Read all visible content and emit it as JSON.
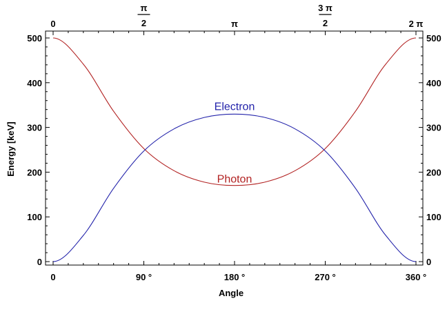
{
  "chart_data": {
    "type": "line",
    "xlabel": "Angle",
    "ylabel": "Energy [keV]",
    "xlim": [
      0,
      360
    ],
    "ylim": [
      0,
      500
    ],
    "grid": false,
    "legend": "none",
    "x_ticks": [
      {
        "value": 0,
        "label": "0"
      },
      {
        "value": 90,
        "label": "90 °"
      },
      {
        "value": 180,
        "label": "180 °"
      },
      {
        "value": 270,
        "label": "270 °"
      },
      {
        "value": 360,
        "label": "360 °"
      }
    ],
    "x_ticks_top": [
      {
        "value": 0,
        "label": "0"
      },
      {
        "value": 90,
        "num": "π",
        "den": "2"
      },
      {
        "value": 180,
        "label": "π"
      },
      {
        "value": 270,
        "num": "3 π",
        "den": "2"
      },
      {
        "value": 360,
        "label": "2 π"
      }
    ],
    "y_ticks": [
      0,
      100,
      200,
      300,
      400,
      500
    ],
    "x": [
      0,
      30,
      60,
      90,
      120,
      150,
      180,
      210,
      240,
      270,
      300,
      330,
      360
    ],
    "series": [
      {
        "name": "Photon",
        "color": "#b22222",
        "values": [
          500,
          441.4,
          336.1,
          252.7,
          203.2,
          177.7,
          170.2,
          177.7,
          203.2,
          252.7,
          336.1,
          441.4,
          500
        ]
      },
      {
        "name": "Electron",
        "color": "#2222aa",
        "values": [
          0,
          58.6,
          163.9,
          247.3,
          296.8,
          322.3,
          329.8,
          322.3,
          296.8,
          247.3,
          163.9,
          58.6,
          0
        ]
      }
    ]
  }
}
